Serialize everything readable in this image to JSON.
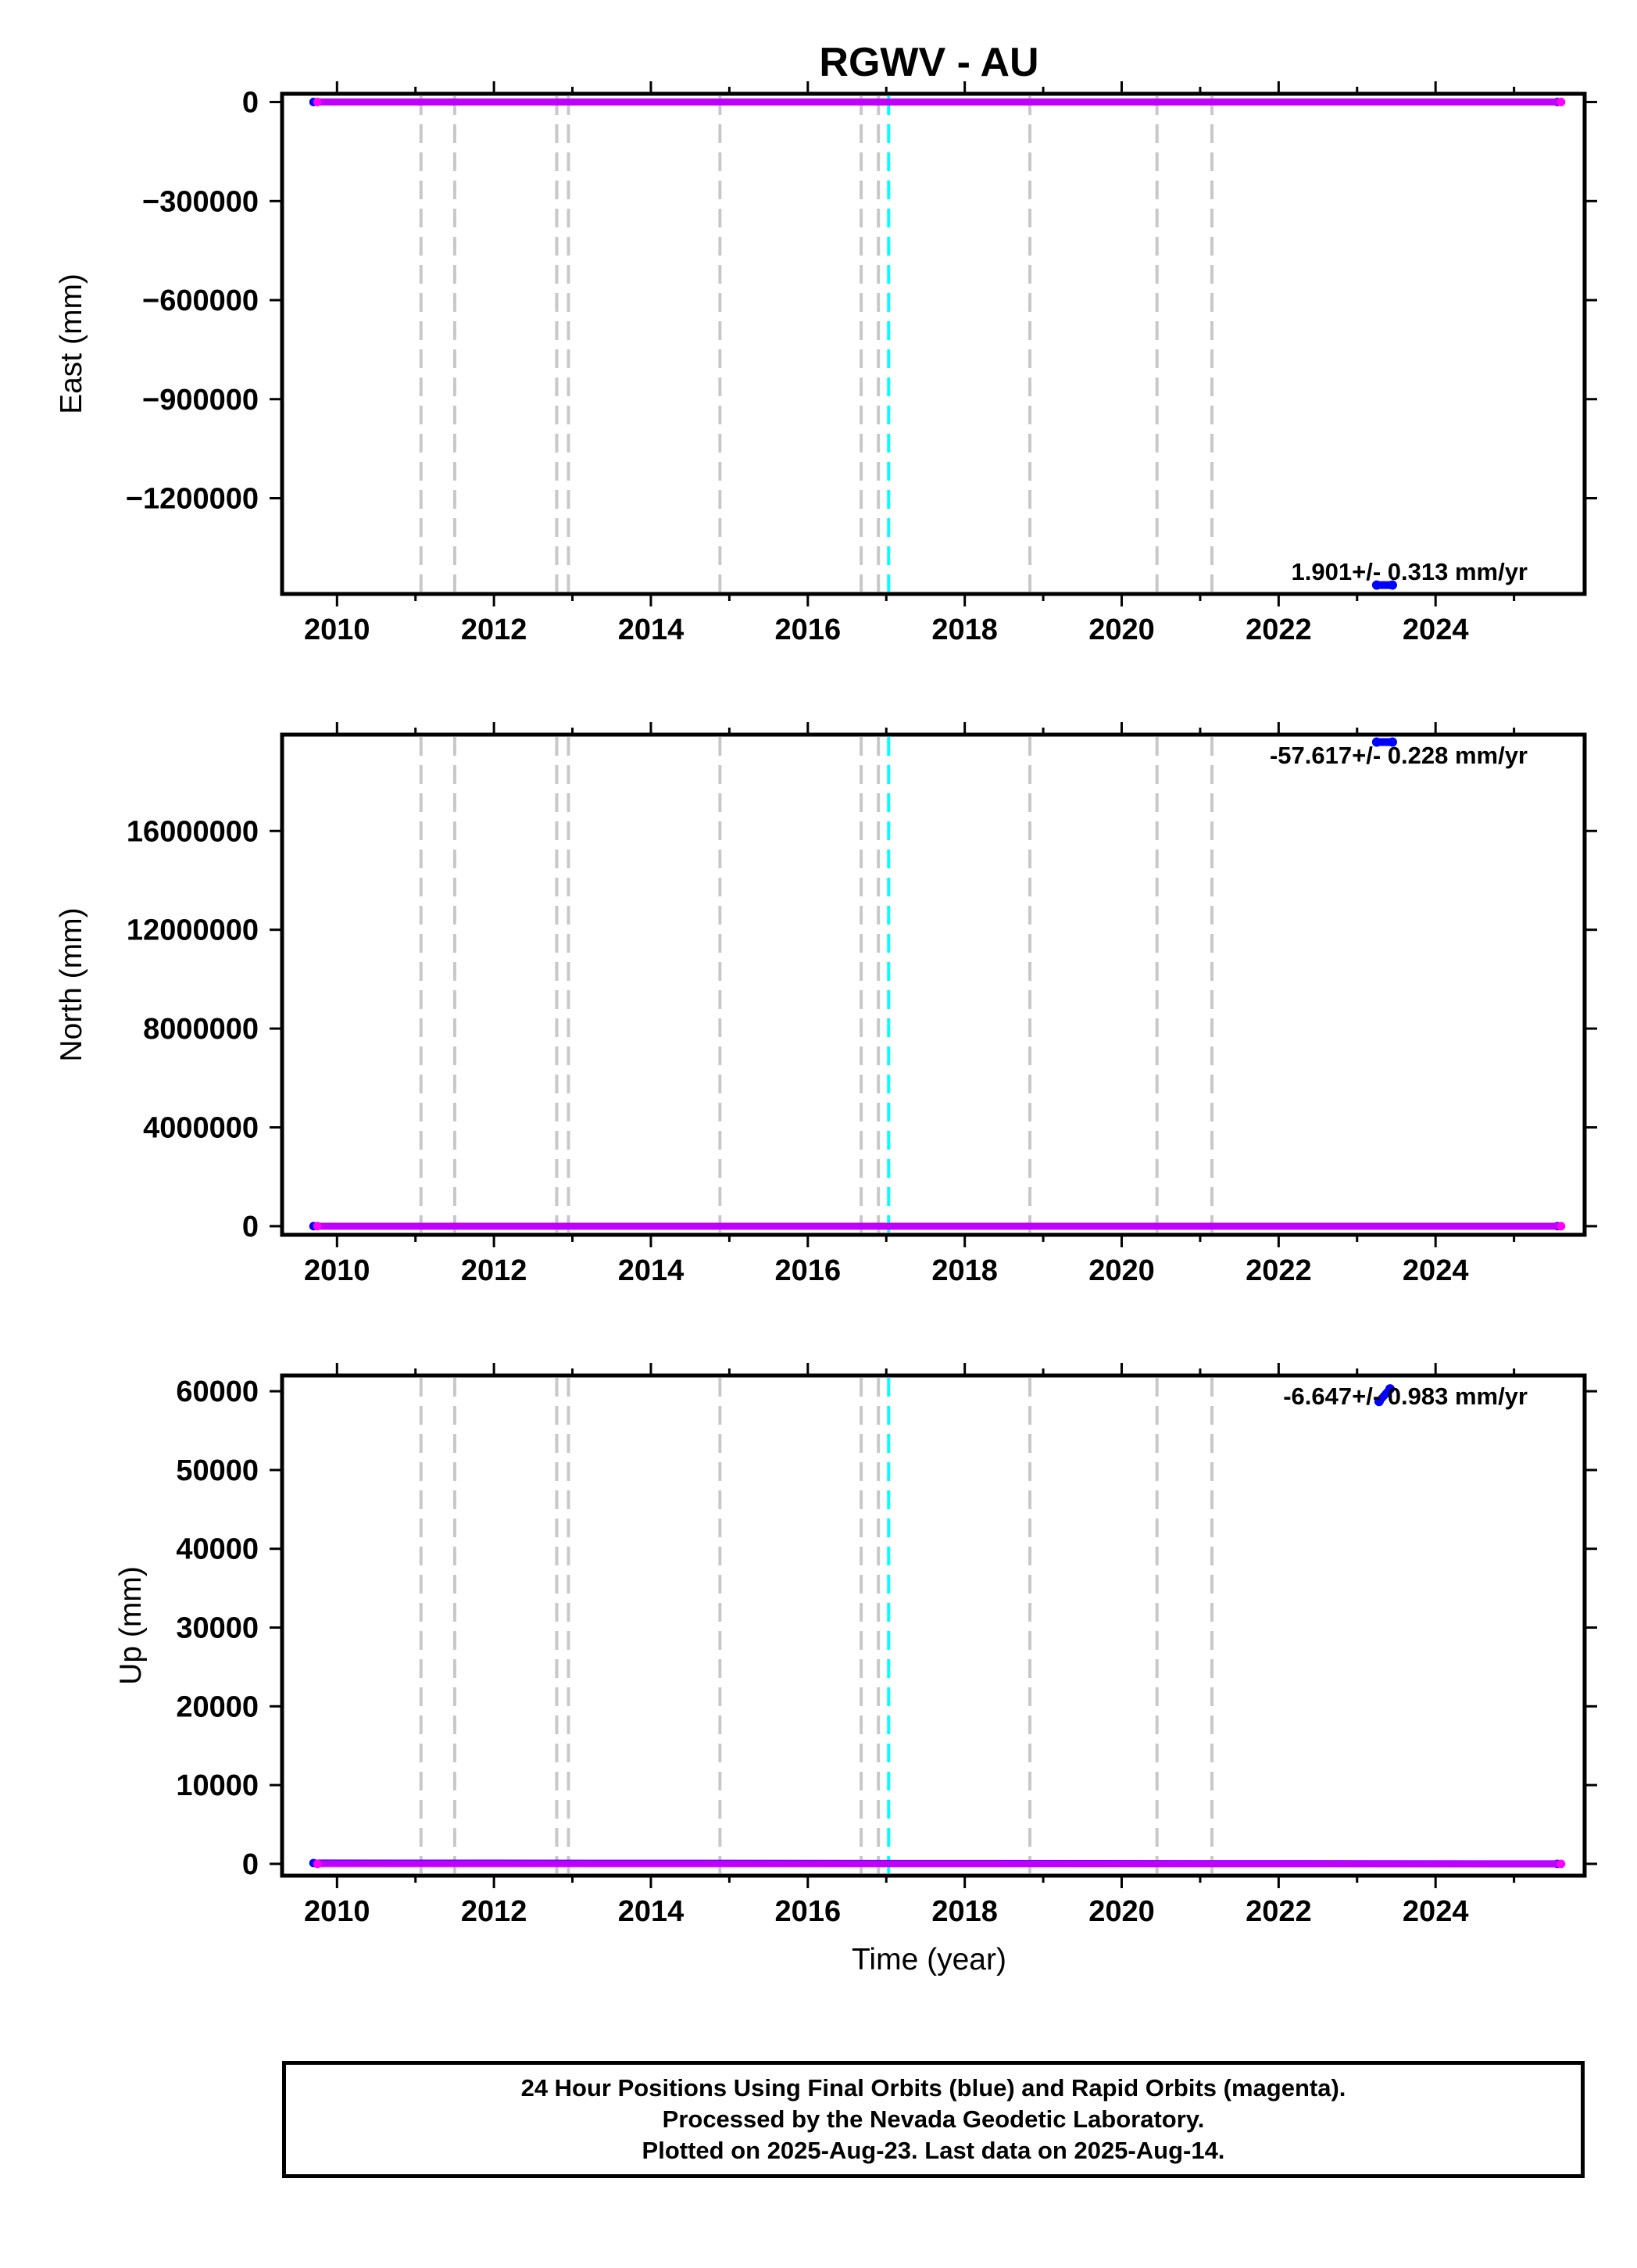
{
  "title": "RGWV - AU",
  "xlabel": "Time (year)",
  "footer": {
    "line1": "24 Hour Positions Using Final Orbits (blue) and Rapid Orbits (magenta).",
    "line2": "Processed by the Nevada Geodetic Laboratory.",
    "line3": "Plotted on 2025-Aug-23. Last data on 2025-Aug-14."
  },
  "colors": {
    "final_orbits": "#0000ff",
    "rapid_orbits": "#ff00ff",
    "event_line": "#c8c8c8",
    "highlight_event_line": "#00ffff",
    "axis": "#000000"
  },
  "chart_data": [
    {
      "type": "scatter",
      "component": "east",
      "ylabel": "East (mm)",
      "xlim": [
        2009.3,
        2025.9
      ],
      "ylim": [
        -1490000,
        25000
      ],
      "xticks": [
        2010,
        2012,
        2014,
        2016,
        2018,
        2020,
        2022,
        2024
      ],
      "yticks": [
        0,
        -300000,
        -600000,
        -900000,
        -1200000
      ],
      "ytick_labels": [
        "0",
        "−300000",
        "−600000",
        "−900000",
        "−1200000"
      ],
      "rate_label": "1.901+/- 0.313 mm/yr",
      "series": [
        {
          "role": "final",
          "segments": [
            {
              "x": [
                2009.7,
                2025.55
              ],
              "y": [
                0,
                0
              ]
            }
          ]
        },
        {
          "role": "rapid",
          "segments": [
            {
              "x": [
                2009.75,
                2025.6
              ],
              "y": [
                0,
                0
              ]
            }
          ]
        },
        {
          "role": "outlier",
          "segments": [
            {
              "x": [
                2023.25,
                2023.45
              ],
              "y": [
                -1463000,
                -1463000
              ]
            }
          ]
        }
      ],
      "event_lines": [
        2011.07,
        2011.5,
        2012.8,
        2012.95,
        2014.88,
        2016.68,
        2016.9,
        2020.45,
        2018.83,
        2021.15
      ],
      "highlight_event_lines": [
        2017.03
      ]
    },
    {
      "type": "scatter",
      "component": "north",
      "ylabel": "North (mm)",
      "xlim": [
        2009.3,
        2025.9
      ],
      "ylim": [
        -350000,
        19900000
      ],
      "xticks": [
        2010,
        2012,
        2014,
        2016,
        2018,
        2020,
        2022,
        2024
      ],
      "yticks": [
        0,
        4000000,
        8000000,
        12000000,
        16000000
      ],
      "ytick_labels": [
        "0",
        "4000000",
        "8000000",
        "12000000",
        "16000000"
      ],
      "rate_label": "-57.617+/- 0.228 mm/yr",
      "series": [
        {
          "role": "final",
          "segments": [
            {
              "x": [
                2009.7,
                2025.55
              ],
              "y": [
                0,
                0
              ]
            }
          ]
        },
        {
          "role": "rapid",
          "segments": [
            {
              "x": [
                2009.75,
                2025.6
              ],
              "y": [
                0,
                0
              ]
            }
          ]
        },
        {
          "role": "outlier",
          "segments": [
            {
              "x": [
                2023.25,
                2023.45
              ],
              "y": [
                19600000,
                19600000
              ]
            }
          ]
        }
      ],
      "event_lines": [
        2011.07,
        2011.5,
        2012.8,
        2012.95,
        2014.88,
        2016.68,
        2016.9,
        2020.45,
        2018.83,
        2021.15
      ],
      "highlight_event_lines": [
        2017.03
      ]
    },
    {
      "type": "scatter",
      "component": "up",
      "ylabel": "Up (mm)",
      "xlim": [
        2009.3,
        2025.9
      ],
      "ylim": [
        -1500,
        62000
      ],
      "xticks": [
        2010,
        2012,
        2014,
        2016,
        2018,
        2020,
        2022,
        2024
      ],
      "yticks": [
        0,
        10000,
        20000,
        30000,
        40000,
        50000,
        60000
      ],
      "ytick_labels": [
        "0",
        "10000",
        "20000",
        "30000",
        "40000",
        "50000",
        "60000"
      ],
      "rate_label": "-6.647+/- 0.983 mm/yr",
      "series": [
        {
          "role": "final",
          "segments": [
            {
              "x": [
                2009.7,
                2025.55
              ],
              "y": [
                100,
                0
              ]
            }
          ]
        },
        {
          "role": "rapid",
          "segments": [
            {
              "x": [
                2009.75,
                2025.6
              ],
              "y": [
                0,
                0
              ]
            }
          ]
        },
        {
          "role": "outlier",
          "segments": [
            {
              "x": [
                2023.28,
                2023.42
              ],
              "y": [
                58700,
                60300
              ]
            }
          ]
        }
      ],
      "event_lines": [
        2011.07,
        2011.5,
        2012.8,
        2012.95,
        2014.88,
        2016.68,
        2016.9,
        2020.45,
        2018.83,
        2021.15
      ],
      "highlight_event_lines": [
        2017.03
      ]
    }
  ]
}
